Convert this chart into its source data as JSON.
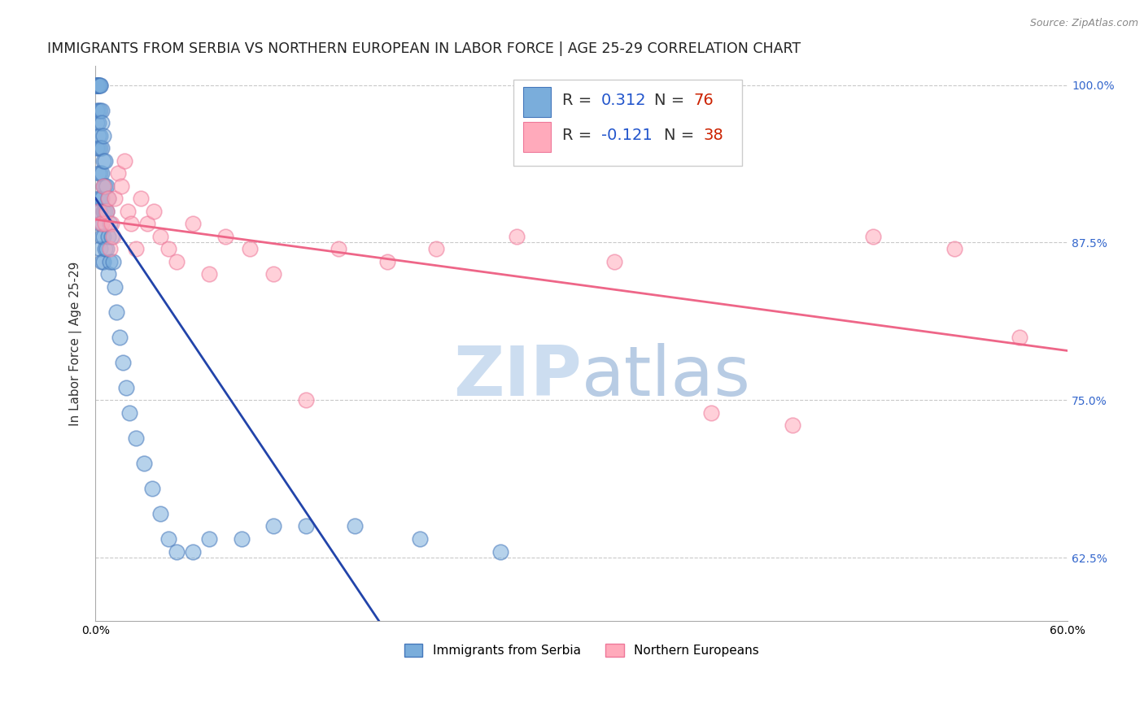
{
  "title": "IMMIGRANTS FROM SERBIA VS NORTHERN EUROPEAN IN LABOR FORCE | AGE 25-29 CORRELATION CHART",
  "source_text": "Source: ZipAtlas.com",
  "ylabel": "In Labor Force | Age 25-29",
  "xlim": [
    0.0,
    0.6
  ],
  "ylim": [
    0.575,
    1.015
  ],
  "ytick_positions": [
    0.625,
    0.75,
    0.875,
    1.0
  ],
  "ytick_labels": [
    "62.5%",
    "75.0%",
    "87.5%",
    "100.0%"
  ],
  "serbia_color": "#7aaddb",
  "serbia_edge_color": "#4477bb",
  "northern_color": "#ffaabb",
  "northern_edge_color": "#ee7799",
  "serbia_R": "0.312",
  "serbia_N": "76",
  "northern_R": "-0.121",
  "northern_N": "38",
  "legend_R_color": "#2255cc",
  "legend_N_color": "#cc2200",
  "watermark_zip_color": "#ccddf0",
  "watermark_atlas_color": "#b8cce4",
  "background_color": "#ffffff",
  "grid_color": "#bbbbbb",
  "title_color": "#222222",
  "title_fontsize": 12.5,
  "tick_fontsize": 10,
  "tick_color_right": "#3366cc",
  "serbia_line_color": "#2244aa",
  "northern_line_color": "#ee6688",
  "serbia_x": [
    0.001,
    0.001,
    0.001,
    0.001,
    0.001,
    0.001,
    0.001,
    0.001,
    0.002,
    0.002,
    0.002,
    0.002,
    0.002,
    0.002,
    0.002,
    0.002,
    0.002,
    0.002,
    0.003,
    0.003,
    0.003,
    0.003,
    0.003,
    0.003,
    0.003,
    0.003,
    0.003,
    0.003,
    0.004,
    0.004,
    0.004,
    0.004,
    0.004,
    0.004,
    0.004,
    0.004,
    0.005,
    0.005,
    0.005,
    0.005,
    0.005,
    0.005,
    0.006,
    0.006,
    0.006,
    0.006,
    0.007,
    0.007,
    0.007,
    0.008,
    0.008,
    0.008,
    0.009,
    0.009,
    0.01,
    0.011,
    0.012,
    0.013,
    0.015,
    0.017,
    0.019,
    0.021,
    0.025,
    0.03,
    0.035,
    0.04,
    0.045,
    0.05,
    0.06,
    0.07,
    0.09,
    0.11,
    0.13,
    0.16,
    0.2,
    0.25
  ],
  "serbia_y": [
    1.0,
    1.0,
    1.0,
    1.0,
    1.0,
    0.98,
    0.97,
    0.95,
    1.0,
    1.0,
    1.0,
    0.98,
    0.97,
    0.96,
    0.95,
    0.93,
    0.91,
    0.9,
    1.0,
    1.0,
    0.98,
    0.96,
    0.95,
    0.93,
    0.91,
    0.9,
    0.89,
    0.87,
    0.98,
    0.97,
    0.95,
    0.93,
    0.91,
    0.89,
    0.88,
    0.86,
    0.96,
    0.94,
    0.92,
    0.9,
    0.88,
    0.86,
    0.94,
    0.92,
    0.9,
    0.87,
    0.92,
    0.9,
    0.87,
    0.91,
    0.88,
    0.85,
    0.89,
    0.86,
    0.88,
    0.86,
    0.84,
    0.82,
    0.8,
    0.78,
    0.76,
    0.74,
    0.72,
    0.7,
    0.68,
    0.66,
    0.64,
    0.63,
    0.63,
    0.64,
    0.64,
    0.65,
    0.65,
    0.65,
    0.64,
    0.63
  ],
  "northern_x": [
    0.002,
    0.004,
    0.005,
    0.006,
    0.007,
    0.008,
    0.009,
    0.01,
    0.011,
    0.012,
    0.014,
    0.016,
    0.018,
    0.02,
    0.022,
    0.025,
    0.028,
    0.032,
    0.036,
    0.04,
    0.045,
    0.05,
    0.06,
    0.07,
    0.08,
    0.095,
    0.11,
    0.13,
    0.15,
    0.18,
    0.21,
    0.26,
    0.32,
    0.38,
    0.43,
    0.48,
    0.53,
    0.57
  ],
  "northern_y": [
    0.9,
    0.89,
    0.92,
    0.89,
    0.9,
    0.91,
    0.87,
    0.89,
    0.88,
    0.91,
    0.93,
    0.92,
    0.94,
    0.9,
    0.89,
    0.87,
    0.91,
    0.89,
    0.9,
    0.88,
    0.87,
    0.86,
    0.89,
    0.85,
    0.88,
    0.87,
    0.85,
    0.75,
    0.87,
    0.86,
    0.87,
    0.88,
    0.86,
    0.74,
    0.73,
    0.88,
    0.87,
    0.8
  ],
  "northern_trend_x": [
    0.001,
    0.57
  ],
  "northern_trend_y": [
    0.897,
    0.81
  ]
}
